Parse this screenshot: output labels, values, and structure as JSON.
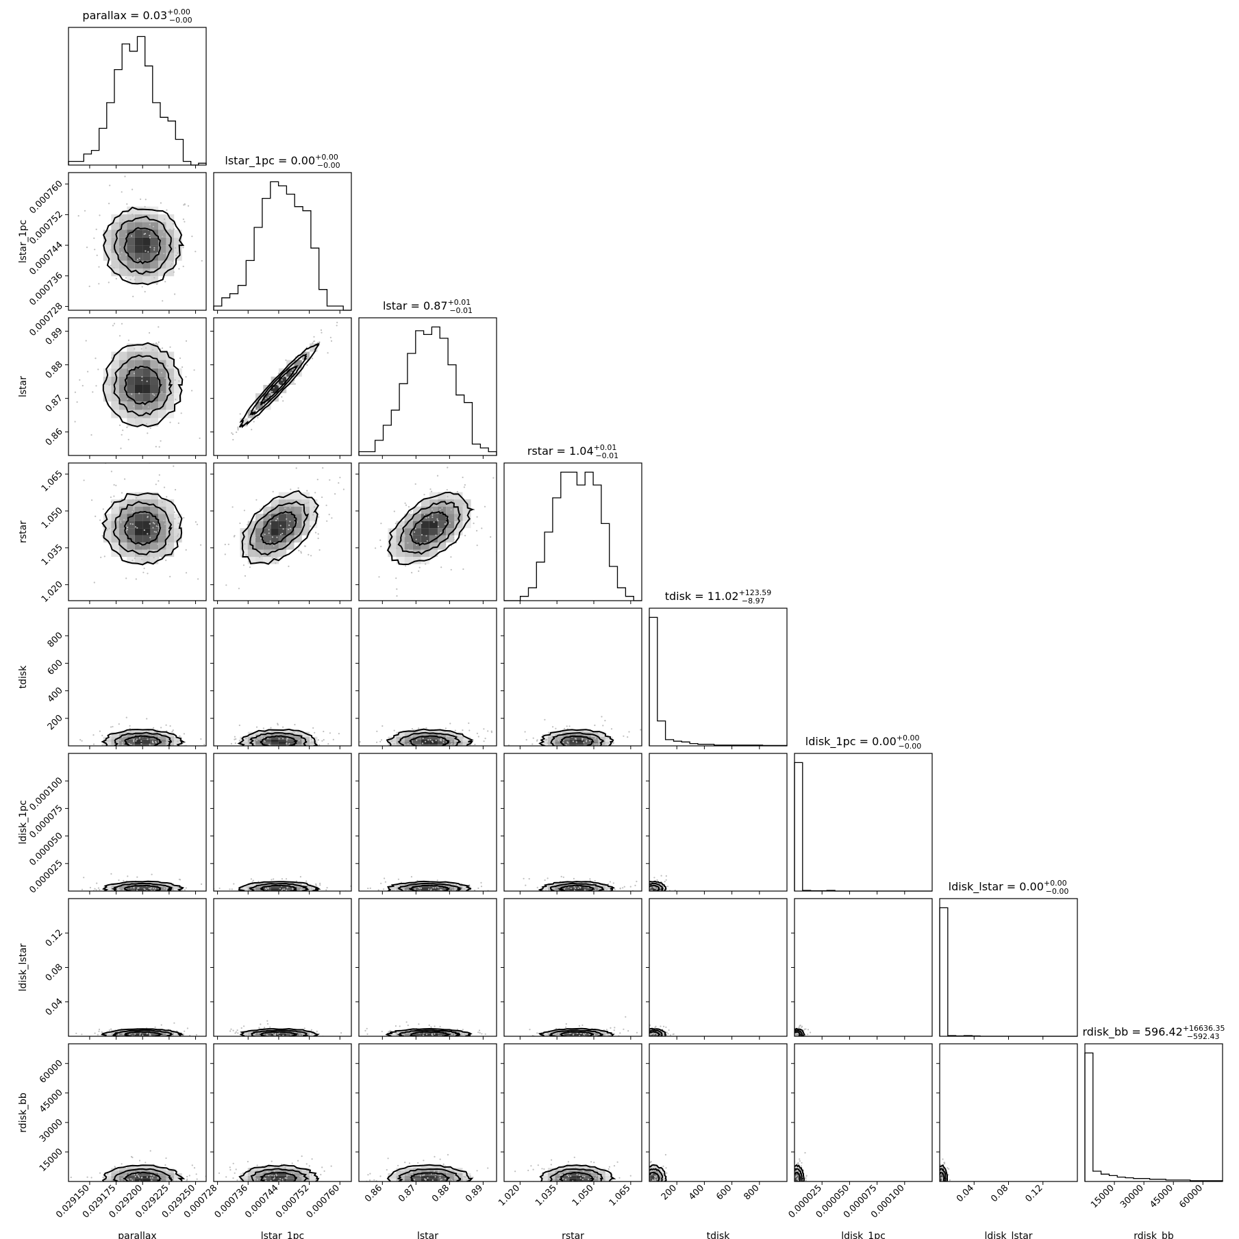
{
  "chart_data": {
    "type": "corner",
    "parameters": [
      {
        "name": "parallax",
        "label": "parallax",
        "range": [
          0.02913,
          0.02926
        ],
        "ticks": [
          0.02915,
          0.029175,
          0.0292,
          0.029225,
          0.02925
        ],
        "tick_labels": [
          "0.029150",
          "0.029175",
          "0.029200",
          "0.029225",
          "0.029250"
        ],
        "title_name": "parallax",
        "title_value": "0.03",
        "title_plus": "+0.00",
        "title_minus": "−0.00",
        "hist": [
          1,
          1,
          3,
          4,
          10,
          17,
          26,
          33,
          31,
          35,
          27,
          17,
          13,
          12,
          7,
          1,
          0,
          0.5
        ],
        "center": 0.0292,
        "sigma": 1.65e-05
      },
      {
        "name": "lstar_1pc",
        "label": "lstar_1pc",
        "range": [
          0.000727,
          0.000763
        ],
        "ticks": [
          0.000728,
          0.000736,
          0.000744,
          0.000752,
          0.00076
        ],
        "tick_labels": [
          "0.000728",
          "0.000736",
          "0.000744",
          "0.000752",
          "0.000760"
        ],
        "title_name": "lstar_1pc",
        "title_value": "0.00",
        "title_plus": "+0.00",
        "title_minus": "−0.00",
        "hist": [
          1,
          3,
          4,
          6,
          12,
          20,
          27,
          31,
          30,
          28,
          25,
          24,
          15,
          5,
          1,
          1,
          0
        ],
        "center": 0.000744,
        "sigma": 4.5e-06
      },
      {
        "name": "lstar",
        "label": "lstar",
        "range": [
          0.853,
          0.894
        ],
        "ticks": [
          0.86,
          0.87,
          0.88,
          0.89
        ],
        "tick_labels": [
          "0.86",
          "0.87",
          "0.88",
          "0.89"
        ],
        "title_name": "lstar",
        "title_value": "0.87",
        "title_plus": "+0.01",
        "title_minus": "−0.01",
        "hist": [
          1,
          1,
          4,
          8,
          12,
          19,
          27,
          33,
          32,
          34,
          31,
          24,
          16,
          14,
          3,
          2,
          1
        ],
        "center": 0.874,
        "sigma": 0.0055
      },
      {
        "name": "rstar",
        "label": "rstar",
        "range": [
          1.0135,
          1.0695
        ],
        "ticks": [
          1.02,
          1.035,
          1.05,
          1.065
        ],
        "tick_labels": [
          "1.020",
          "1.035",
          "1.050",
          "1.065"
        ],
        "title_name": "rstar",
        "title_value": "1.04",
        "title_plus": "+0.01",
        "title_minus": "−0.01",
        "hist": [
          0,
          0,
          1,
          3,
          9,
          16,
          24,
          30,
          30,
          27,
          30,
          27,
          18,
          8,
          3,
          1,
          0
        ],
        "center": 1.043,
        "sigma": 0.0065
      },
      {
        "name": "tdisk",
        "label": "tdisk",
        "range": [
          0,
          1000
        ],
        "ticks": [
          200,
          400,
          600,
          800
        ],
        "tick_labels": [
          "200",
          "400",
          "600",
          "800"
        ],
        "title_name": "tdisk",
        "title_value": "11.02",
        "title_plus": "+123.59",
        "title_minus": "−8.97",
        "hist": [
          165,
          32,
          8,
          6,
          5,
          3,
          2,
          2,
          1,
          1,
          1,
          1,
          1,
          1,
          0.5,
          0.5,
          0.5
        ],
        "center": 30,
        "sigma": 40
      },
      {
        "name": "ldisk_1pc",
        "label": "ldisk_1pc",
        "range": [
          0,
          0.000125
        ],
        "ticks": [
          2.5e-05,
          5e-05,
          7.5e-05,
          0.0001
        ],
        "tick_labels": [
          "0.000025",
          "0.000050",
          "0.000075",
          "0.000100"
        ],
        "title_name": "ldisk_1pc",
        "title_value": "0.00",
        "title_plus": "+0.00",
        "title_minus": "−0.00",
        "hist": [
          195,
          1,
          0.5,
          0.5,
          1,
          0,
          0,
          0,
          0,
          0,
          0,
          0,
          0,
          0,
          0,
          0,
          0
        ],
        "center": 2e-06,
        "sigma": 3e-06
      },
      {
        "name": "ldisk_lstar",
        "label": "ldisk_lstar",
        "range": [
          0,
          0.16
        ],
        "ticks": [
          0.04,
          0.08,
          0.12
        ],
        "tick_labels": [
          "0.04",
          "0.08",
          "0.12"
        ],
        "title_name": "ldisk_lstar",
        "title_value": "0.00",
        "title_plus": "+0.00",
        "title_minus": "−0.00",
        "hist": [
          185,
          1,
          0.5,
          1,
          0.5,
          0,
          0,
          0,
          0,
          0,
          0,
          0,
          0,
          0,
          0,
          0,
          0
        ],
        "center": 0.002,
        "sigma": 0.003
      },
      {
        "name": "rdisk_bb",
        "label": "rdisk_bb",
        "range": [
          0,
          70000
        ],
        "ticks": [
          15000,
          30000,
          45000,
          60000
        ],
        "tick_labels": [
          "15000",
          "30000",
          "45000",
          "60000"
        ],
        "title_name": "rdisk_bb",
        "title_value": "596.42",
        "title_plus": "+16636.35",
        "title_minus": "−592.43",
        "hist": [
          175,
          14,
          10,
          8,
          6,
          5,
          4,
          4,
          3,
          3,
          2,
          2,
          2,
          1,
          1,
          1,
          1
        ],
        "center": 1500,
        "sigma": 3000
      }
    ],
    "correlations": [
      {
        "i": 2,
        "j": 1,
        "rho": 0.97
      },
      {
        "i": 3,
        "j": 1,
        "rho": 0.5
      },
      {
        "i": 3,
        "j": 2,
        "rho": 0.5
      }
    ],
    "grid": false
  }
}
